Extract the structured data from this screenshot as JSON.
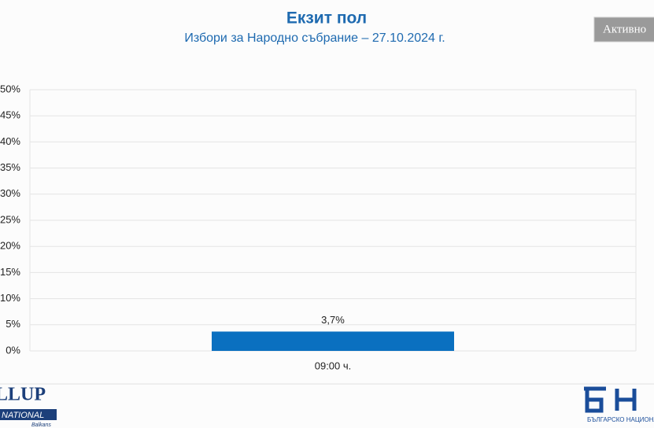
{
  "chart_data": {
    "type": "bar",
    "title": "Екзит пол",
    "subtitle": "Избори за Народно събрание – 27.10.2024 г.",
    "categories": [
      "09:00 ч."
    ],
    "values": [
      3.7
    ],
    "value_labels": [
      "3,7%"
    ],
    "color": "#0a70c0",
    "ylim": [
      0,
      50
    ],
    "yticks": [
      {
        "value": 0,
        "label": "0%"
      },
      {
        "value": 5,
        "label": "5%"
      },
      {
        "value": 10,
        "label": "10%"
      },
      {
        "value": 15,
        "label": "15%"
      },
      {
        "value": 20,
        "label": "20%"
      },
      {
        "value": 25,
        "label": "25%"
      },
      {
        "value": 30,
        "label": "30%"
      },
      {
        "value": 35,
        "label": "35%"
      },
      {
        "value": 40,
        "label": "40%"
      },
      {
        "value": 45,
        "label": "45%"
      },
      {
        "value": 50,
        "label": "50%"
      }
    ],
    "grid": true
  },
  "overlay": {
    "button": "Активно",
    "logo_left": [
      "LLUP",
      "NATIONAL",
      "Balkans"
    ],
    "logo_right": "БЪЛГАРСКО НАЦИОНА"
  }
}
